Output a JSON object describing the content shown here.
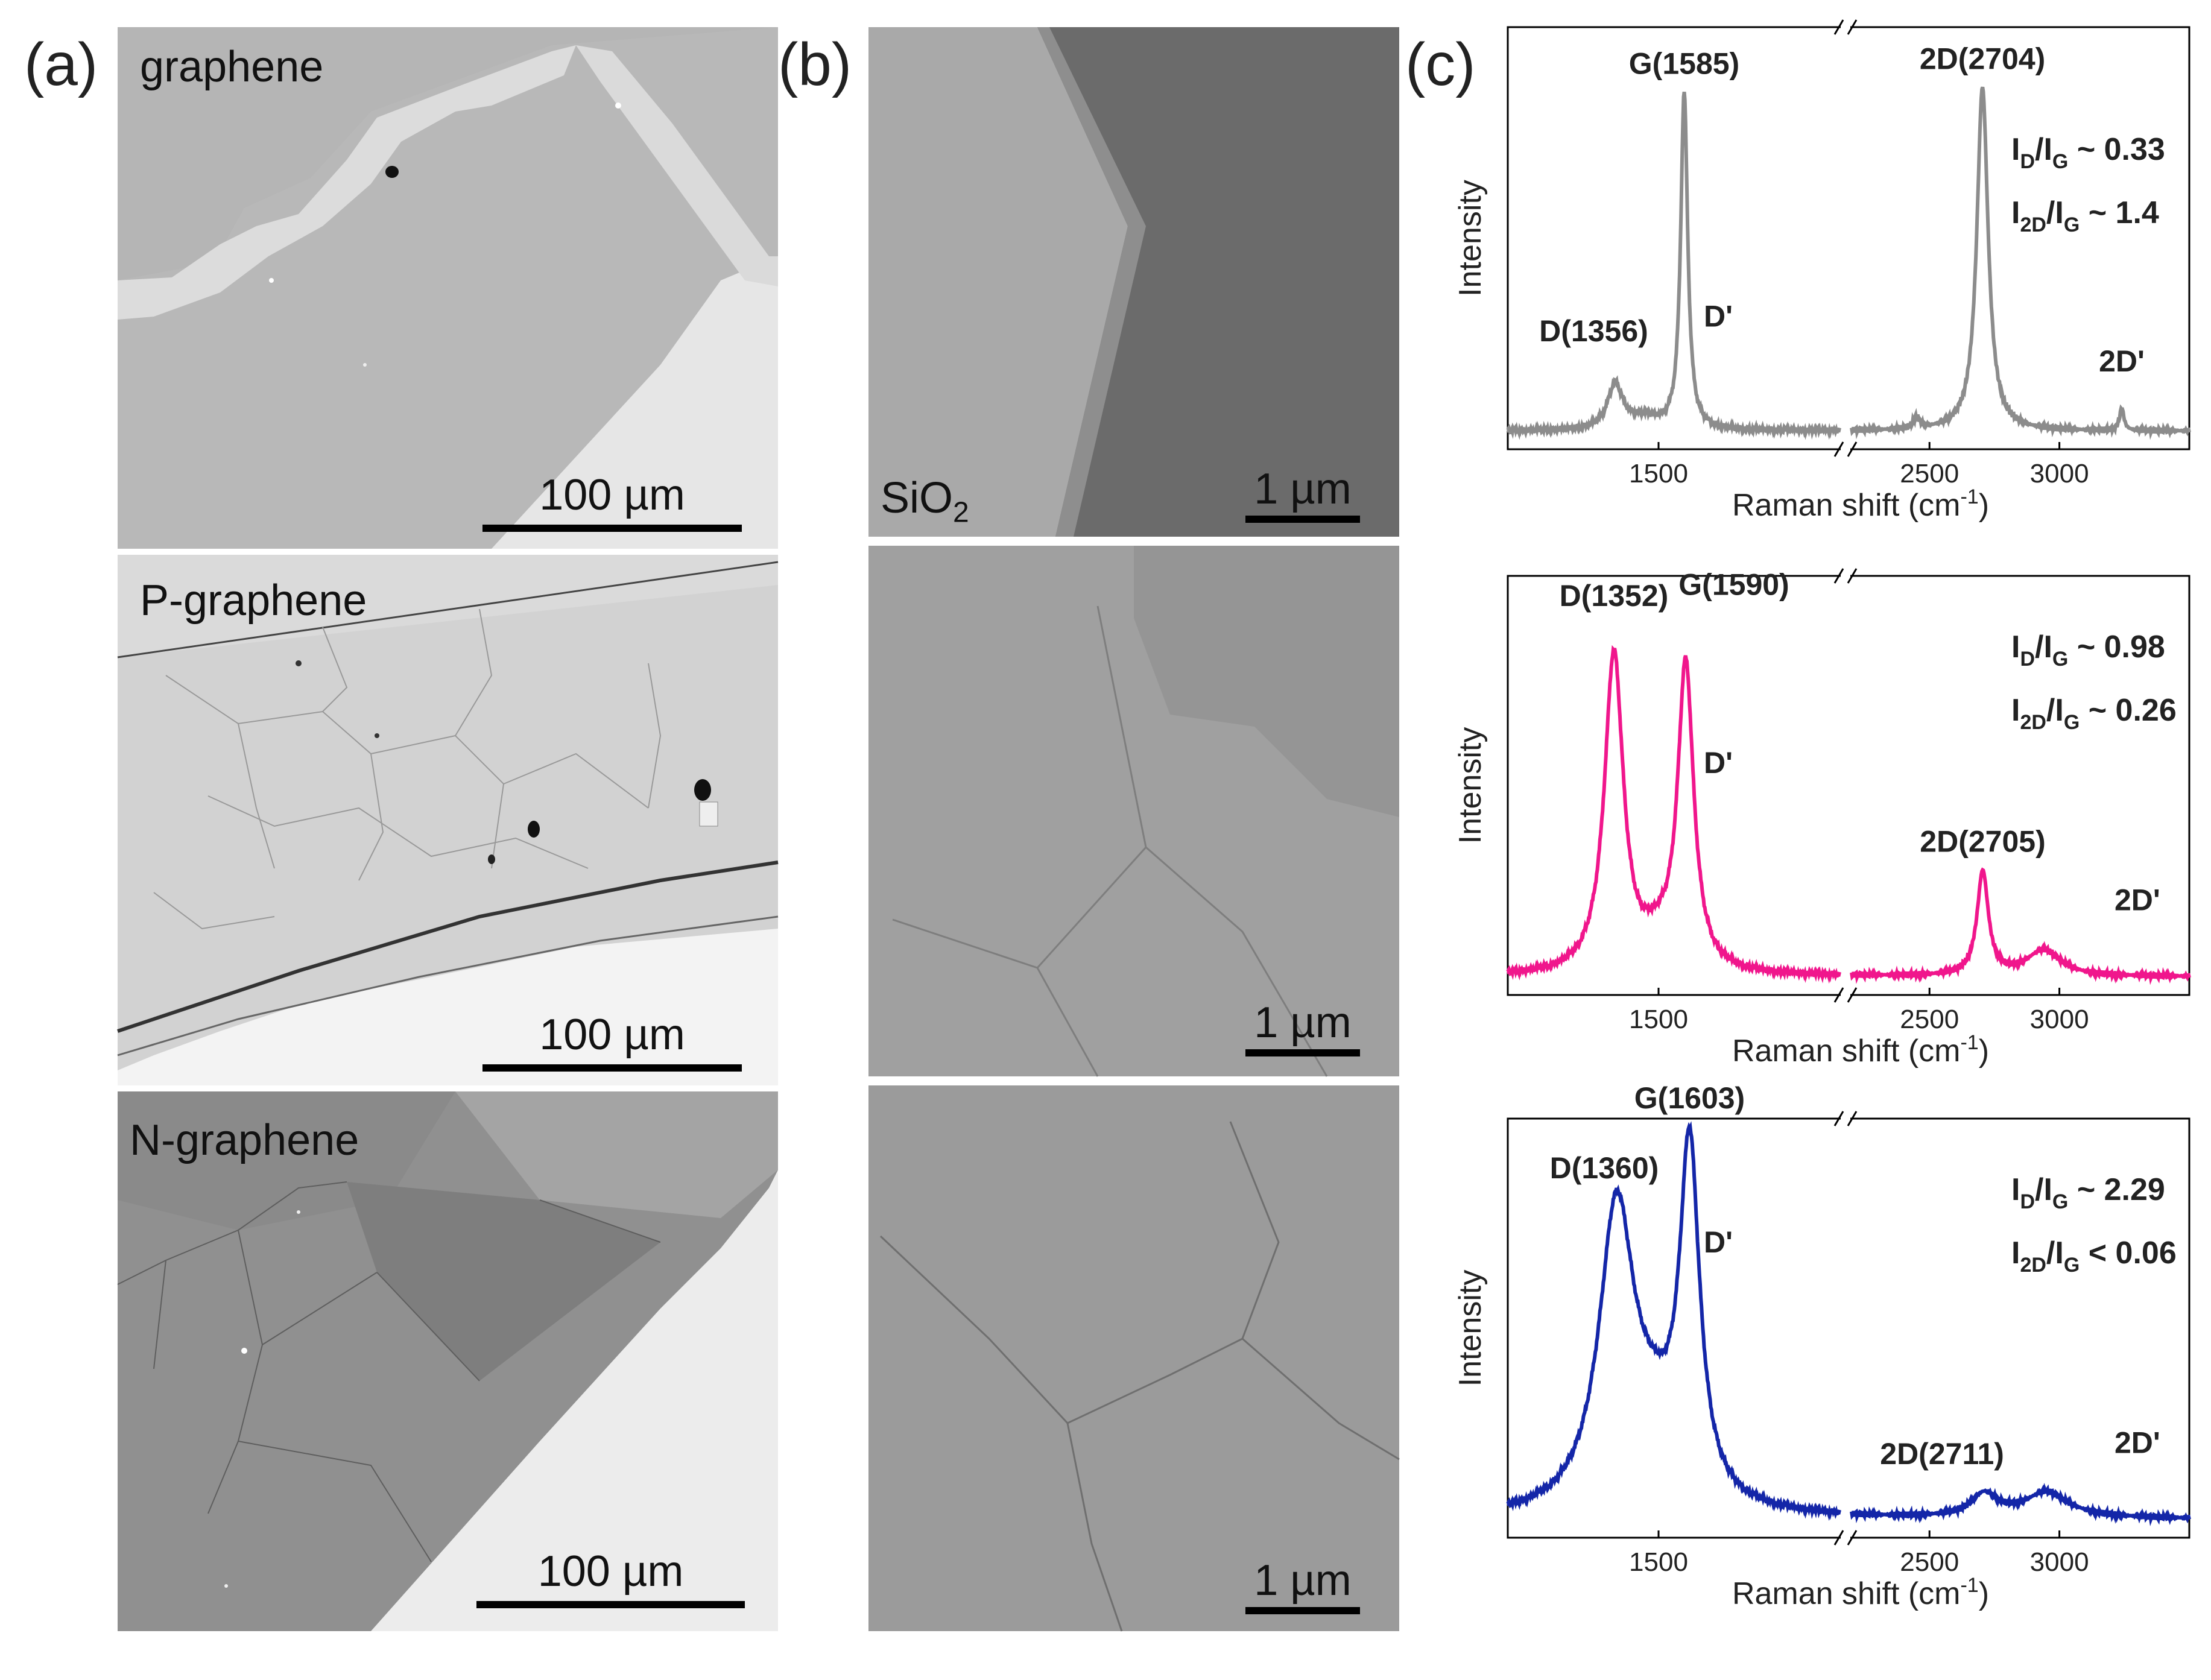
{
  "figure": {
    "panel_a": {
      "letter": "(a)",
      "images": [
        {
          "label": "graphene",
          "scale_bar": "100 µm"
        },
        {
          "label": "P-graphene",
          "scale_bar": "100 µm"
        },
        {
          "label": "N-graphene",
          "scale_bar": "100 µm"
        }
      ]
    },
    "panel_b": {
      "letter": "(b)",
      "images": [
        {
          "label": "SiO",
          "label_sub": "2",
          "scale_bar": "1 µm"
        },
        {
          "label": "",
          "scale_bar": "1 µm"
        },
        {
          "label": "",
          "scale_bar": "1 µm"
        }
      ]
    },
    "panel_c": {
      "letter": "(c)"
    }
  },
  "chart_data": [
    {
      "type": "line",
      "name": "graphene Raman",
      "color": "#8c8c8c",
      "xlabel": "Raman shift (cm",
      "xlabel_sup": "-1",
      "xlabel_close": ")",
      "ylabel": "Intensity",
      "axis_break": true,
      "xlim_left": [
        1000,
        2100
      ],
      "xlim_right": [
        2200,
        3500
      ],
      "xticks": [
        1500,
        2500,
        3000
      ],
      "peaks": [
        {
          "label": "D(1356)",
          "x": 1356,
          "h": 0.12
        },
        {
          "label": "G(1585)",
          "x": 1585,
          "h": 0.9
        },
        {
          "label": "D'",
          "x": 1620,
          "h": 0.1
        },
        {
          "label": "2D(2704)",
          "x": 2704,
          "h": 0.92
        },
        {
          "label": "2D'",
          "x": 3240,
          "h": 0.06
        }
      ],
      "ratios": [
        {
          "num": "D",
          "den": "G",
          "rel": "~",
          "value": "0.33"
        },
        {
          "num": "2D",
          "den": "G",
          "rel": "~",
          "value": "1.4"
        }
      ]
    },
    {
      "type": "line",
      "name": "P-graphene Raman",
      "color": "#f0168c",
      "xlabel": "Raman shift (cm",
      "xlabel_sup": "-1",
      "xlabel_close": ")",
      "ylabel": "Intensity",
      "axis_break": true,
      "xlim_left": [
        1000,
        2100
      ],
      "xlim_right": [
        2200,
        3500
      ],
      "xticks": [
        1500,
        2500,
        3000
      ],
      "peaks": [
        {
          "label": "D(1352)",
          "x": 1352,
          "h": 0.86
        },
        {
          "label": "G(1590)",
          "x": 1590,
          "h": 0.82
        },
        {
          "label": "D'",
          "x": 1620,
          "h": 0.06
        },
        {
          "label": "2D(2705)",
          "x": 2705,
          "h": 0.28
        },
        {
          "label": "2D'",
          "x": 2940,
          "h": 0.07
        }
      ],
      "ratios": [
        {
          "num": "D",
          "den": "G",
          "rel": "~",
          "value": "0.98"
        },
        {
          "num": "2D",
          "den": "G",
          "rel": "~",
          "value": "0.26"
        }
      ]
    },
    {
      "type": "line",
      "name": "N-graphene Raman",
      "color": "#1426a8",
      "xlabel": "Raman shift (cm",
      "xlabel_sup": "-1",
      "xlabel_close": ")",
      "ylabel": "Intensity",
      "axis_break": true,
      "xlim_left": [
        1000,
        2100
      ],
      "xlim_right": [
        2200,
        3500
      ],
      "xticks": [
        1500,
        2500,
        3000
      ],
      "peaks": [
        {
          "label": "D(1360)",
          "x": 1360,
          "h": 0.78
        },
        {
          "label": "G(1603)",
          "x": 1603,
          "h": 0.92
        },
        {
          "label": "D'",
          "x": 1620,
          "h": 0.04
        },
        {
          "label": "2D(2711)",
          "x": 2711,
          "h": 0.06
        },
        {
          "label": "2D'",
          "x": 2950,
          "h": 0.04
        }
      ],
      "ratios": [
        {
          "num": "D",
          "den": "G",
          "rel": "~",
          "value": "2.29"
        },
        {
          "num": "2D",
          "den": "G",
          "rel": "<",
          "value": "0.06"
        }
      ]
    }
  ]
}
